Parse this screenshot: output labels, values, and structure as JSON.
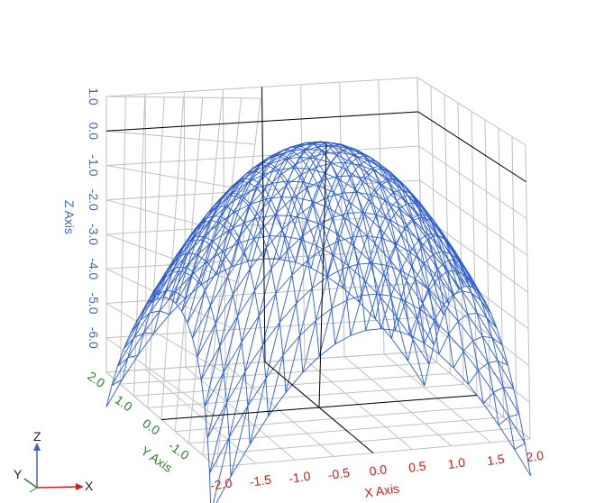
{
  "chart_data": {
    "type": "surface",
    "title": "",
    "xlabel": "X Axis",
    "ylabel": "Y Axis",
    "zlabel": "Z Axis",
    "x_ticks": [
      "-2.0",
      "-1.5",
      "-1.0",
      "-0.5",
      "0.0",
      "0.5",
      "1.0",
      "1.5",
      "2.0"
    ],
    "y_ticks": [
      "-1.0",
      "0.0",
      "1.0",
      "2.0"
    ],
    "z_ticks": [
      "1.0",
      "0.0",
      "-1.0",
      "-2.0",
      "-3.0",
      "-4.0",
      "-5.0",
      "-6.0"
    ],
    "xlim": [
      -2,
      2
    ],
    "ylim": [
      -2,
      2
    ],
    "zlim": [
      -7,
      1
    ],
    "surface": {
      "function": "z = -(x^2 + y^2)",
      "x_range": [
        -2,
        2
      ],
      "y_range": [
        -2,
        2
      ],
      "grid_lines": 21,
      "color": "#2b5bcf",
      "style": "wireframe"
    },
    "grid": true,
    "colors": {
      "x_axis": "#cc2222",
      "y_axis": "#2e7d2e",
      "z_axis": "#3a64c8",
      "gridlines": "#c0c0c0",
      "axes_edges": "#000000"
    }
  },
  "triad": {
    "x": "X",
    "y": "Y",
    "z": "Z"
  }
}
